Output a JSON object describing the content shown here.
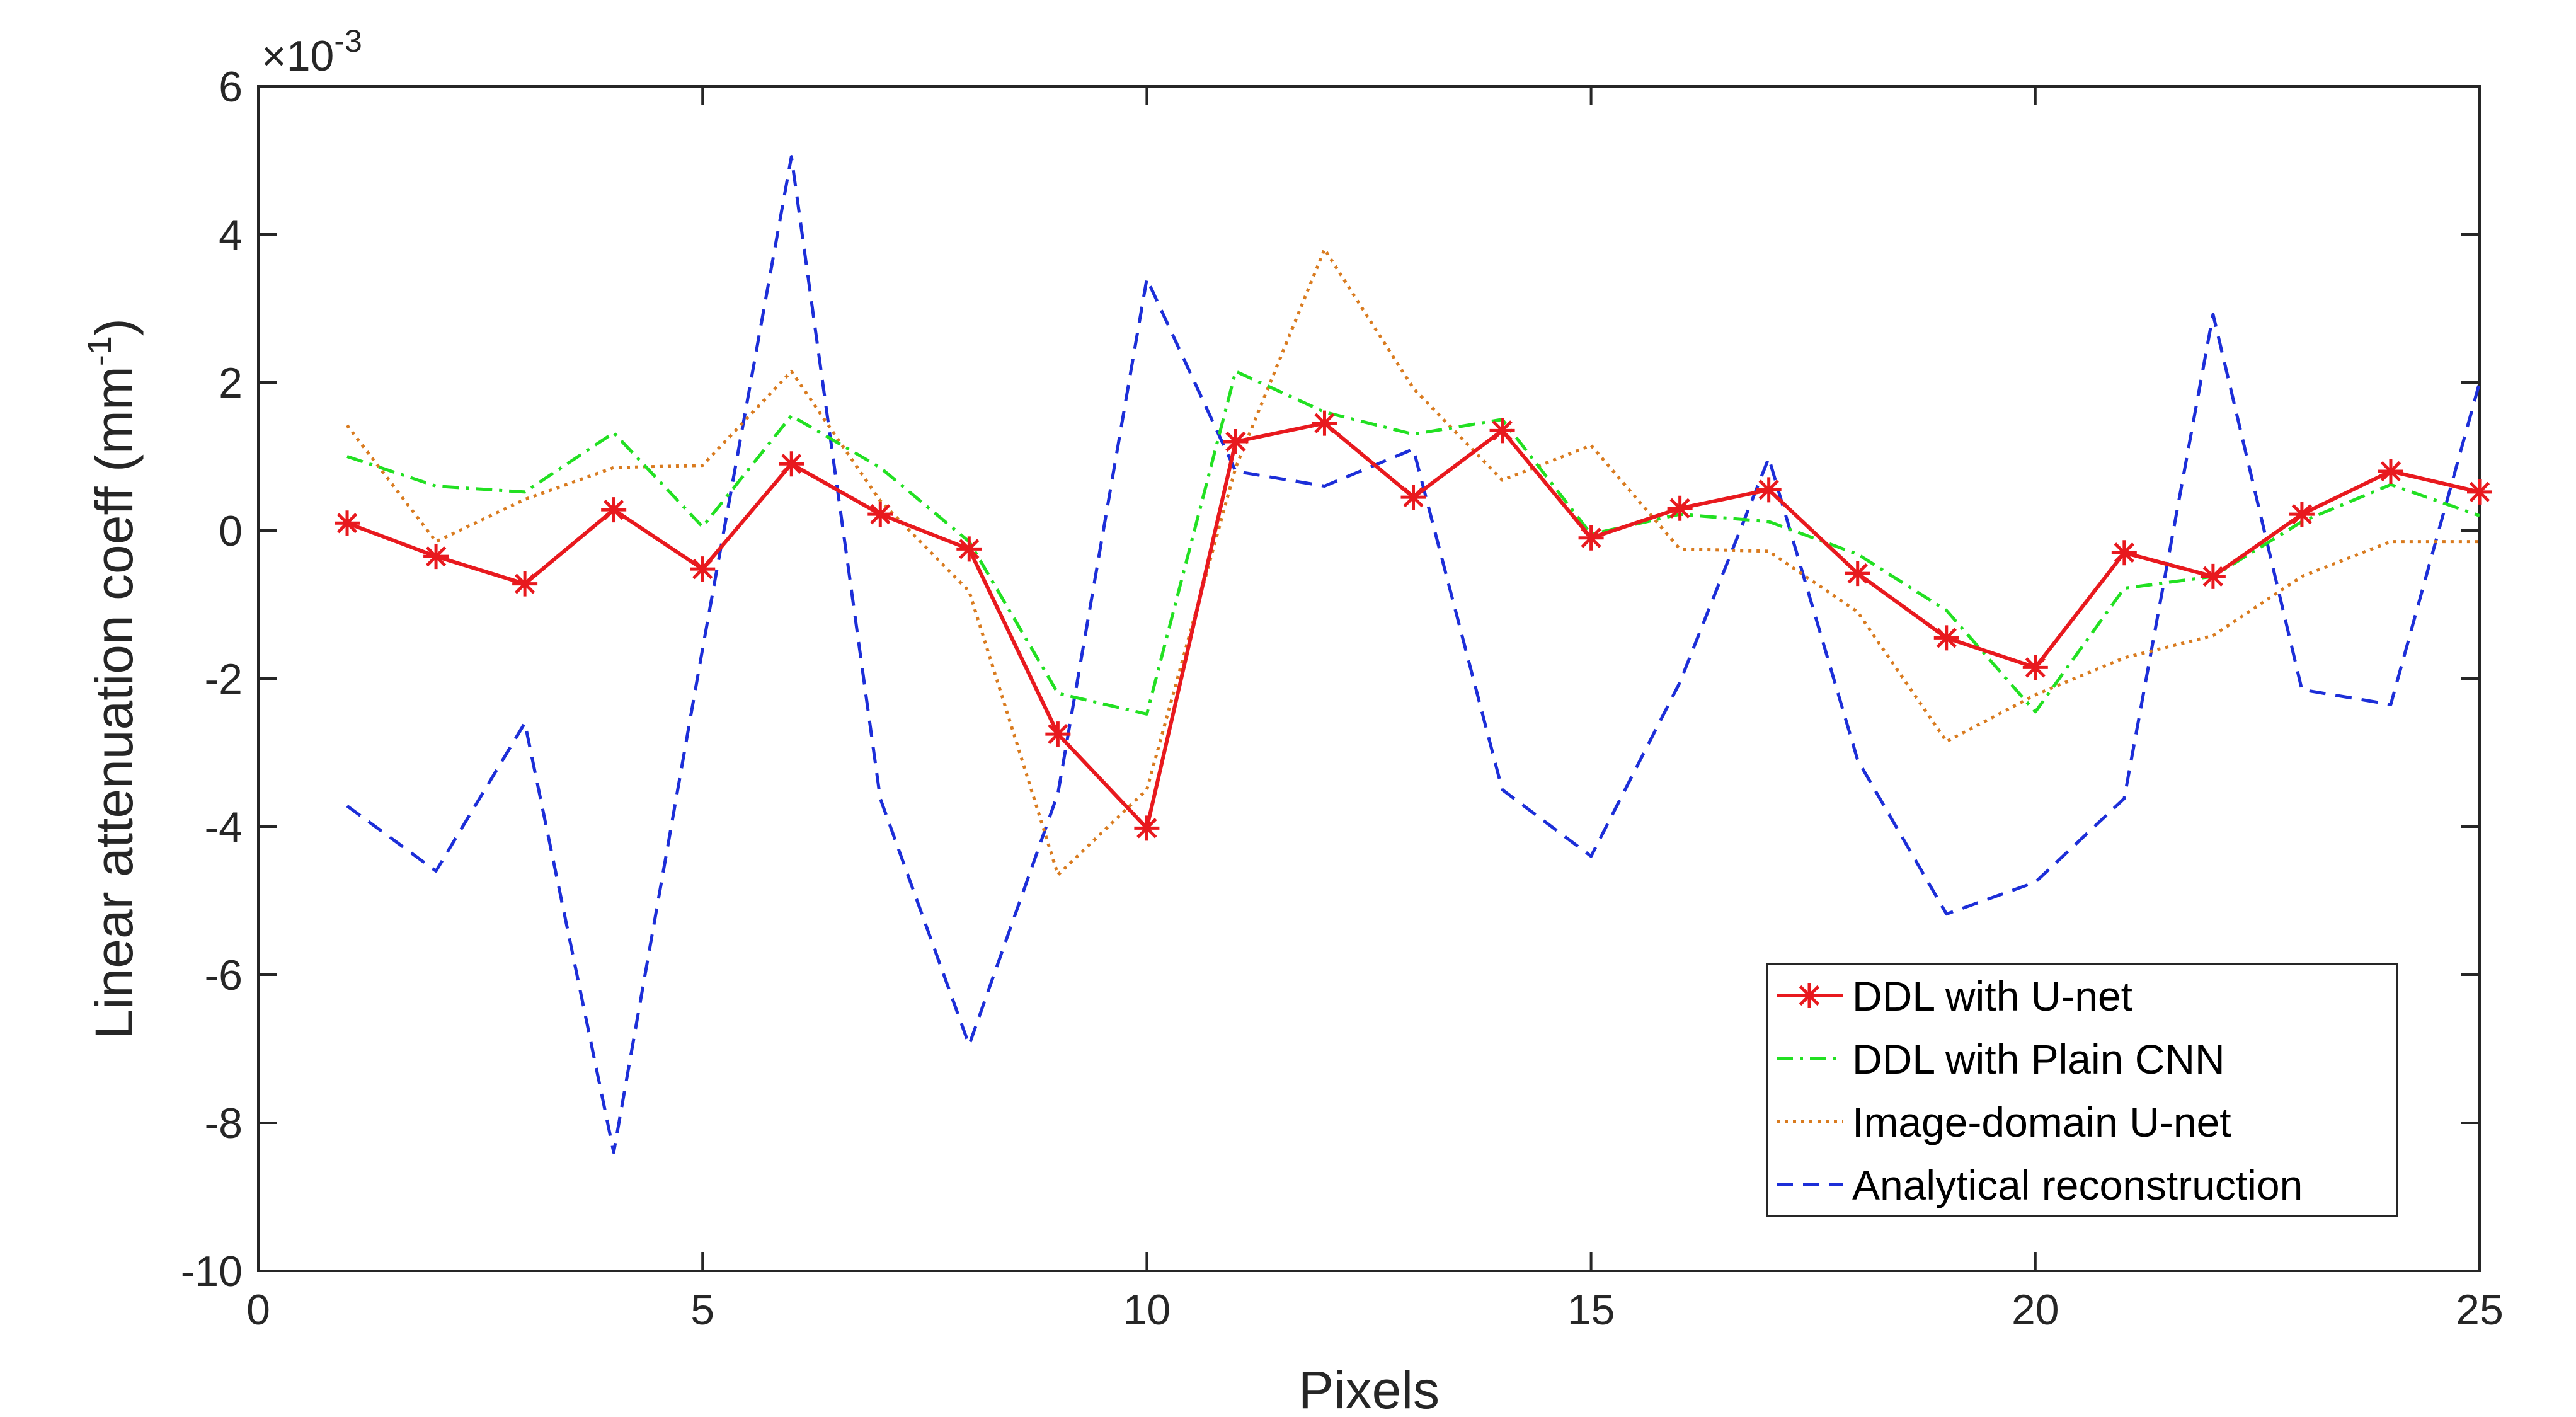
{
  "chart_data": {
    "type": "line",
    "xlabel": "Pixels",
    "ylabel_main": "Linear attenuation coeff (mm",
    "ylabel_sup": "-1",
    "ylabel_close": ")",
    "multiplier_prefix": "×10",
    "multiplier_exp": "-3",
    "xlim": [
      0,
      25
    ],
    "ylim": [
      -10,
      6
    ],
    "xticks": [
      0,
      5,
      10,
      15,
      20,
      25
    ],
    "yticks": [
      -10,
      -8,
      -6,
      -4,
      -2,
      0,
      2,
      4,
      6
    ],
    "grid": false,
    "legend_position": "bottom-right",
    "x": [
      1,
      2,
      3,
      4,
      5,
      6,
      7,
      8,
      9,
      10,
      11,
      12,
      13,
      14,
      15,
      16,
      17,
      18,
      19,
      20,
      21,
      22,
      23,
      24,
      25
    ],
    "series": [
      {
        "name": "DDL with U-net",
        "color": "#e8191e",
        "style": "solid-star",
        "values": [
          0.1,
          -0.35,
          -0.72,
          0.28,
          -0.52,
          0.9,
          0.22,
          -0.25,
          -2.75,
          -4.02,
          1.2,
          1.45,
          0.45,
          1.35,
          -0.1,
          0.3,
          0.55,
          -0.58,
          -1.45,
          -1.85,
          -0.3,
          -0.62,
          0.22,
          0.8,
          0.52
        ]
      },
      {
        "name": "DDL with Plain CNN",
        "color": "#22e022",
        "style": "dashdot",
        "values": [
          1.0,
          0.6,
          0.52,
          1.32,
          0.05,
          1.55,
          0.85,
          -0.15,
          -2.2,
          -2.48,
          2.15,
          1.6,
          1.3,
          1.5,
          -0.05,
          0.22,
          0.12,
          -0.32,
          -1.08,
          -2.45,
          -0.78,
          -0.62,
          0.12,
          0.62,
          0.2
        ]
      },
      {
        "name": "Image-domain U-net",
        "color": "#d97b1f",
        "style": "dotted",
        "values": [
          1.42,
          -0.15,
          0.42,
          0.85,
          0.88,
          2.15,
          0.4,
          -0.82,
          -4.65,
          -3.5,
          0.85,
          3.8,
          1.92,
          0.68,
          1.15,
          -0.25,
          -0.28,
          -1.1,
          -2.85,
          -2.22,
          -1.72,
          -1.42,
          -0.62,
          -0.15,
          -0.15
        ]
      },
      {
        "name": "Analytical reconstruction",
        "color": "#1c2ed8",
        "style": "dashed",
        "values": [
          -3.72,
          -4.6,
          -2.6,
          -8.4,
          -1.6,
          5.05,
          -3.62,
          -6.95,
          -3.55,
          3.4,
          0.8,
          0.6,
          1.1,
          -3.5,
          -4.4,
          -2.05,
          0.98,
          -3.1,
          -5.18,
          -4.75,
          -3.62,
          2.92,
          -2.15,
          -2.35,
          2.0
        ]
      }
    ]
  }
}
